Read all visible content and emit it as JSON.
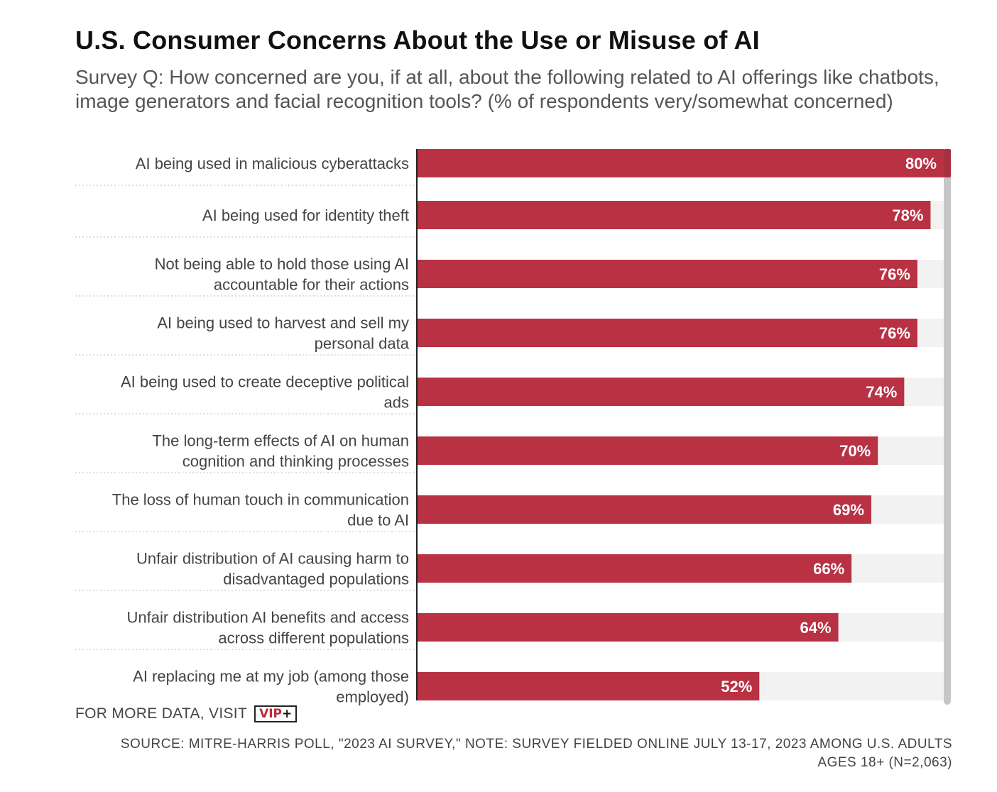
{
  "title": "U.S. Consumer Concerns About the Use or Misuse of AI",
  "subtitle": "Survey Q: How concerned are you, if at all, about the following related to AI offerings like chatbots, image generators and facial recognition tools? (% of respondents very/somewhat concerned)",
  "footer": {
    "more_data_label": "FOR MORE DATA, VISIT",
    "logo_text": "VIP+",
    "source": "SOURCE: MITRE-HARRIS POLL, \"2023 AI SURVEY,\" NOTE: SURVEY FIELDED ONLINE JULY 13-17, 2023 AMONG U.S. ADULTS AGES 18+ (N=2,063)"
  },
  "colors": {
    "bar": "#b83244",
    "track": "#f2f2f2",
    "scrollbar": "#c6c6c6",
    "label_text": "#444444",
    "value_text": "#ffffff"
  },
  "chart_data": {
    "type": "bar",
    "orientation": "horizontal",
    "categories": [
      "AI being used in malicious cyberattacks",
      "AI being used for identity theft",
      "Not being able to hold those using AI accountable for their actions",
      "AI being used to harvest and sell my personal data",
      "AI being used to create deceptive political ads",
      "The long-term effects of AI on human cognition and thinking processes",
      "The loss of human touch in communication due to AI",
      "Unfair distribution of AI causing harm to disadvantaged populations",
      "Unfair distribution AI benefits and access across different populations",
      "AI replacing me at my job (among those employed)"
    ],
    "values": [
      80,
      78,
      76,
      76,
      74,
      70,
      69,
      66,
      64,
      52
    ],
    "value_labels": [
      "80%",
      "78%",
      "76%",
      "76%",
      "74%",
      "70%",
      "69%",
      "66%",
      "64%",
      "52%"
    ],
    "xlim": [
      0,
      80
    ],
    "unit": "%",
    "grid": false
  }
}
